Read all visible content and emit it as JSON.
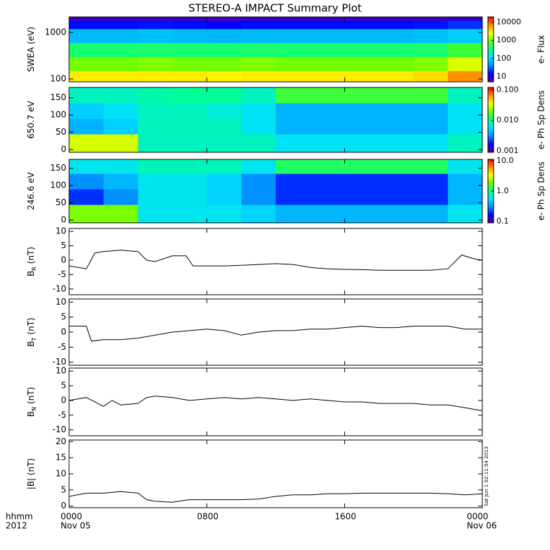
{
  "title": "STEREO-A IMPACT Summary Plot",
  "xaxis": {
    "xlim": [
      0,
      24
    ],
    "ticks": [
      {
        "value": 0,
        "label": "0000"
      },
      {
        "value": 8,
        "label": "0800"
      },
      {
        "value": 16,
        "label": "1600"
      },
      {
        "value": 24,
        "label": "0000"
      }
    ],
    "format_label": "hhmm",
    "year": "2012",
    "start_date": "Nov 05",
    "end_date": "Nov 06"
  },
  "timestamp": "Sat Jun  1 02:11:54 2013",
  "colormap": [
    "#5a00a0",
    "#0000ff",
    "#0090ff",
    "#00e0ff",
    "#00ff90",
    "#60ff00",
    "#ffff00",
    "#ff9000",
    "#ff0000"
  ],
  "chart_data": [
    {
      "type": "heatmap",
      "ylabel": "SWEA (eV)",
      "ylog": true,
      "ylim": [
        87,
        2150
      ],
      "yticks": [
        100,
        1000
      ],
      "colorbar_label": "e- Flux",
      "clog": true,
      "clim": [
        5,
        20000
      ],
      "cticks": [
        10,
        100,
        1000,
        10000
      ],
      "x_edges": [
        0,
        2,
        4,
        6,
        8,
        10,
        12,
        14,
        16,
        18,
        20,
        22,
        24
      ],
      "y_edges": [
        87,
        150,
        300,
        600,
        1200,
        1800,
        2150
      ],
      "z": [
        [
          3000,
          3000,
          3000,
          3000,
          2800,
          3000,
          3000,
          3000,
          3000,
          3000,
          3500,
          7000
        ],
        [
          1000,
          1000,
          1100,
          1000,
          1000,
          1100,
          1000,
          1000,
          1000,
          1000,
          1100,
          2000
        ],
        [
          400,
          400,
          420,
          400,
          400,
          420,
          400,
          400,
          400,
          400,
          420,
          600
        ],
        [
          70,
          70,
          75,
          70,
          65,
          70,
          70,
          70,
          70,
          70,
          75,
          90
        ],
        [
          15,
          15,
          16,
          15,
          14,
          15,
          15,
          15,
          15,
          15,
          16,
          20
        ],
        [
          7,
          7,
          7,
          7,
          6,
          7,
          7,
          7,
          7,
          7,
          7,
          8
        ]
      ]
    },
    {
      "type": "heatmap",
      "ylabel": "650.7 eV",
      "ylim": [
        -8,
        180
      ],
      "yticks": [
        0,
        50,
        100,
        150
      ],
      "colorbar_label": "e- Ph Sp Dens",
      "clog": true,
      "clim": [
        0.0009,
        0.12
      ],
      "cticks": [
        0.001,
        {
          "value": 0.01,
          "label": "0.010"
        },
        {
          "value": 0.1,
          "label": "0.100"
        }
      ],
      "x_edges": [
        0,
        2,
        4,
        6,
        8,
        10,
        12,
        14,
        16,
        18,
        20,
        22,
        24
      ],
      "y_edges": [
        -8,
        45,
        90,
        135,
        180
      ],
      "z": [
        [
          0.03,
          0.03,
          0.008,
          0.008,
          0.008,
          0.008,
          0.006,
          0.006,
          0.006,
          0.006,
          0.006,
          0.008
        ],
        [
          0.004,
          0.005,
          0.008,
          0.008,
          0.008,
          0.006,
          0.004,
          0.004,
          0.004,
          0.004,
          0.004,
          0.006
        ],
        [
          0.005,
          0.006,
          0.008,
          0.008,
          0.007,
          0.006,
          0.004,
          0.004,
          0.004,
          0.004,
          0.004,
          0.006
        ],
        [
          0.008,
          0.008,
          0.009,
          0.01,
          0.01,
          0.008,
          0.015,
          0.015,
          0.015,
          0.015,
          0.015,
          0.008
        ]
      ]
    },
    {
      "type": "heatmap",
      "ylabel": "246.6 eV",
      "ylim": [
        -8,
        176
      ],
      "yticks": [
        0,
        50,
        100,
        150
      ],
      "colorbar_label": "e- Ph Sp Dens",
      "clog": true,
      "clim": [
        0.09,
        11
      ],
      "cticks": [
        0.1,
        {
          "value": 1,
          "label": "1.0"
        },
        {
          "value": 10,
          "label": "10.0"
        }
      ],
      "x_edges": [
        0,
        2,
        4,
        6,
        8,
        10,
        12,
        14,
        16,
        18,
        20,
        22,
        24
      ],
      "y_edges": [
        -8,
        45,
        90,
        135,
        176
      ],
      "z": [
        [
          2,
          2,
          0.6,
          0.6,
          0.6,
          0.5,
          0.4,
          0.4,
          0.4,
          0.4,
          0.4,
          0.6
        ],
        [
          0.2,
          0.3,
          0.6,
          0.6,
          0.5,
          0.3,
          0.2,
          0.2,
          0.2,
          0.2,
          0.2,
          0.4
        ],
        [
          0.3,
          0.4,
          0.6,
          0.6,
          0.5,
          0.3,
          0.2,
          0.2,
          0.2,
          0.2,
          0.2,
          0.4
        ],
        [
          0.6,
          0.6,
          0.8,
          0.8,
          0.8,
          0.6,
          1.2,
          1.2,
          1.2,
          1.2,
          1.2,
          0.6
        ]
      ]
    },
    {
      "type": "line",
      "ylabel": "B",
      "ylabel_sub": "R",
      "ylabel_unit": "(nT)",
      "ylim": [
        -12,
        11
      ],
      "yticks": [
        -10,
        -5,
        0,
        5,
        10
      ],
      "color": "#000000",
      "x": [
        0,
        1,
        1.5,
        2,
        3,
        4,
        4.5,
        5,
        6,
        6.8,
        7.2,
        9,
        10,
        11,
        12,
        13,
        14,
        15,
        16,
        17,
        18,
        19,
        20,
        21,
        22,
        22.8,
        23.5,
        24
      ],
      "values": [
        -2,
        -3,
        2.5,
        3,
        3.5,
        3,
        0,
        -0.5,
        1.5,
        1.5,
        -2,
        -2,
        -1.8,
        -1.5,
        -1.2,
        -1.5,
        -2.5,
        -3,
        -3.2,
        -3.3,
        -3.5,
        -3.5,
        -3.5,
        -3.5,
        -3,
        1.8,
        0.5,
        0
      ]
    },
    {
      "type": "line",
      "ylabel": "B",
      "ylabel_sub": "T",
      "ylabel_unit": "(nT)",
      "ylim": [
        -11,
        11
      ],
      "yticks": [
        -10,
        -5,
        0,
        5,
        10
      ],
      "color": "#000000",
      "x": [
        0,
        1,
        1.3,
        2,
        3,
        4,
        5,
        6,
        7,
        8,
        9,
        10,
        11,
        12,
        13,
        14,
        15,
        16,
        17,
        18,
        19,
        20,
        21,
        22,
        23,
        24
      ],
      "values": [
        2,
        2,
        -3,
        -2.5,
        -2.5,
        -2,
        -1,
        0,
        0.5,
        1,
        0.5,
        -1,
        0,
        0.5,
        0.5,
        1,
        1,
        1.5,
        2,
        1.5,
        1.5,
        2,
        2,
        2,
        1,
        1
      ]
    },
    {
      "type": "line",
      "ylabel": "B",
      "ylabel_sub": "N",
      "ylabel_unit": "(nT)",
      "ylim": [
        -12,
        11
      ],
      "yticks": [
        -10,
        -5,
        0,
        5,
        10
      ],
      "color": "#000000",
      "x": [
        0,
        1,
        2,
        2.5,
        3,
        4,
        4.5,
        5,
        6,
        7,
        8,
        9,
        10,
        11,
        12,
        13,
        14,
        15,
        16,
        17,
        18,
        19,
        20,
        21,
        22,
        23,
        24
      ],
      "values": [
        0,
        1,
        -2,
        0,
        -1.5,
        -1,
        1,
        1.5,
        1,
        0,
        0.5,
        1,
        0.5,
        1,
        0.5,
        0,
        0.5,
        0,
        -0.5,
        -0.5,
        -1,
        -1,
        -1,
        -1.5,
        -1.5,
        -2.5,
        -3.5
      ]
    },
    {
      "type": "line",
      "ylabel": "|B| (nT)",
      "ylim": [
        -0.5,
        20.5
      ],
      "yticks": [
        0,
        5,
        10,
        15,
        20
      ],
      "color": "#000000",
      "x": [
        0,
        1,
        2,
        3,
        4,
        4.5,
        5,
        6,
        7,
        8,
        9,
        10,
        11,
        12,
        13,
        14,
        15,
        16,
        17,
        18,
        19,
        20,
        21,
        22,
        23,
        24
      ],
      "values": [
        3,
        4,
        4,
        4.5,
        4,
        2,
        1.5,
        1.2,
        2,
        2,
        2,
        2,
        2.2,
        3,
        3.5,
        3.5,
        3.8,
        3.8,
        4,
        4,
        4,
        4,
        4,
        3.8,
        3.5,
        3.8
      ]
    }
  ]
}
